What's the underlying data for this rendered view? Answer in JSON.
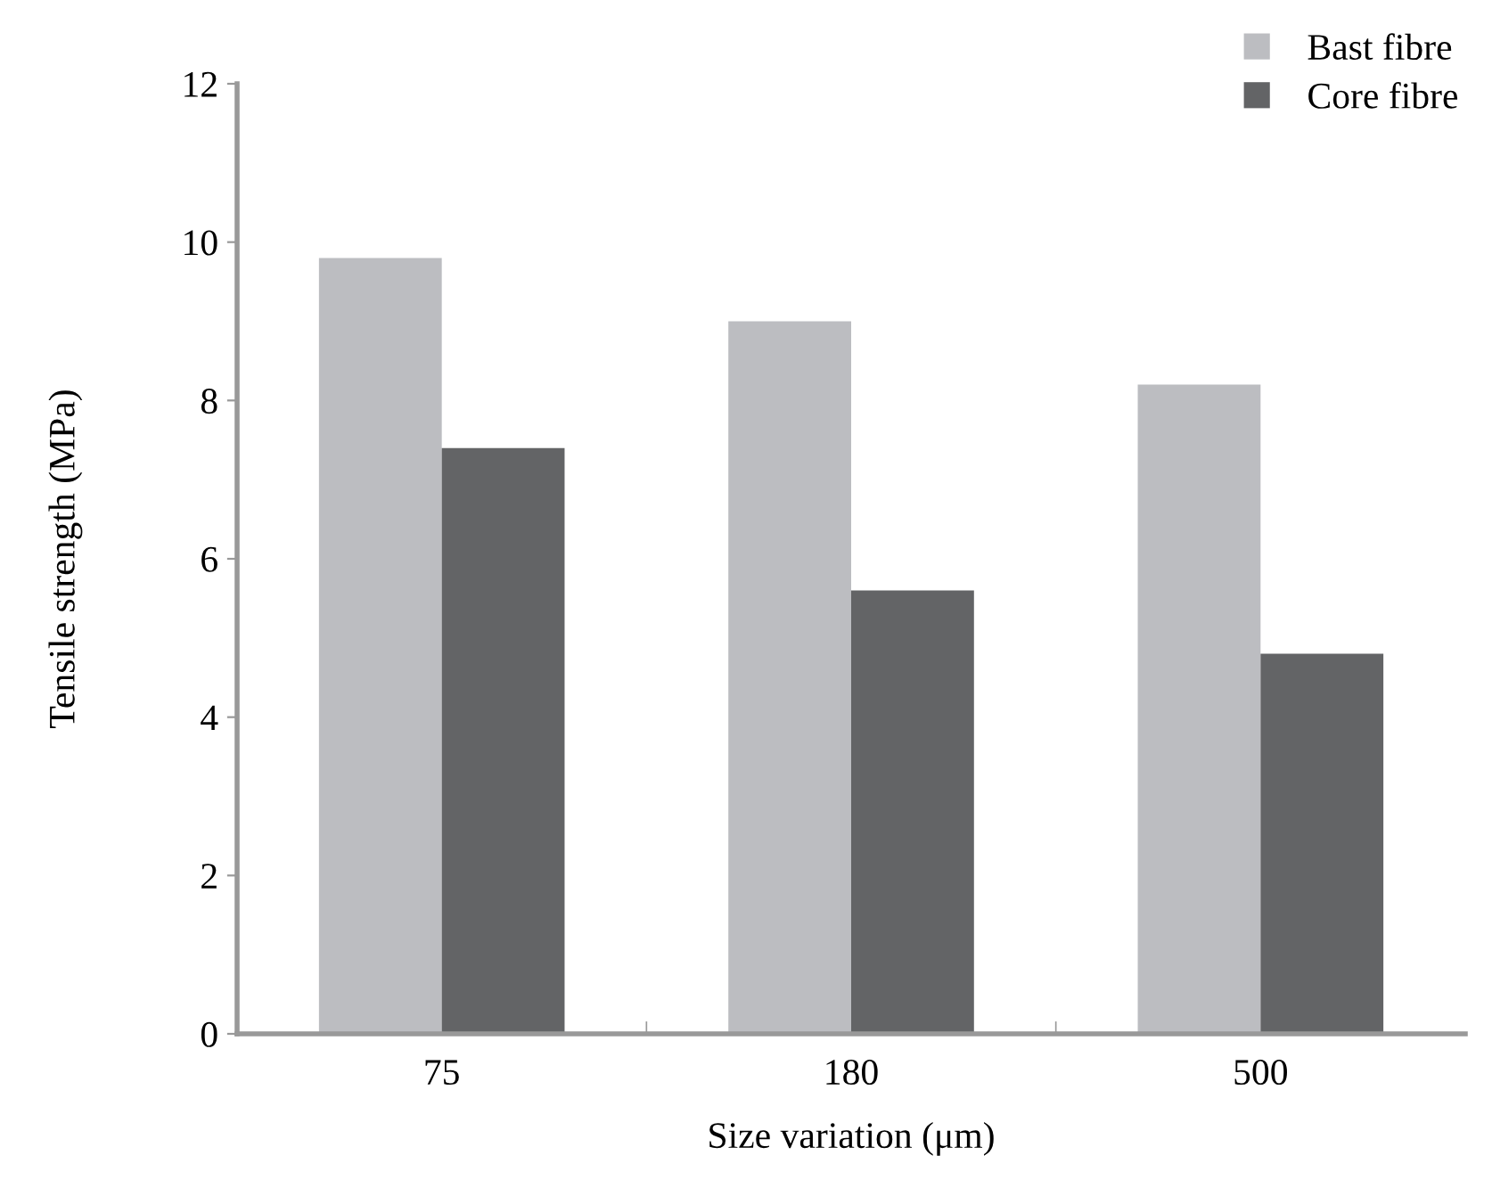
{
  "chart_data": {
    "type": "bar",
    "xlabel": "Size variation (μm)",
    "ylabel": "Tensile strength (MPa)",
    "categories": [
      "75",
      "180",
      "500"
    ],
    "series": [
      {
        "name": "Bast fibre",
        "color": "#bcbdc1",
        "values": [
          9.8,
          9.0,
          8.2
        ]
      },
      {
        "name": "Core fibre",
        "color": "#636466",
        "values": [
          7.4,
          5.6,
          4.8
        ]
      }
    ],
    "ylim": [
      0,
      12
    ],
    "yticks": [
      0,
      2,
      4,
      6,
      8,
      10,
      12
    ],
    "grid": false,
    "legend": "top right"
  }
}
